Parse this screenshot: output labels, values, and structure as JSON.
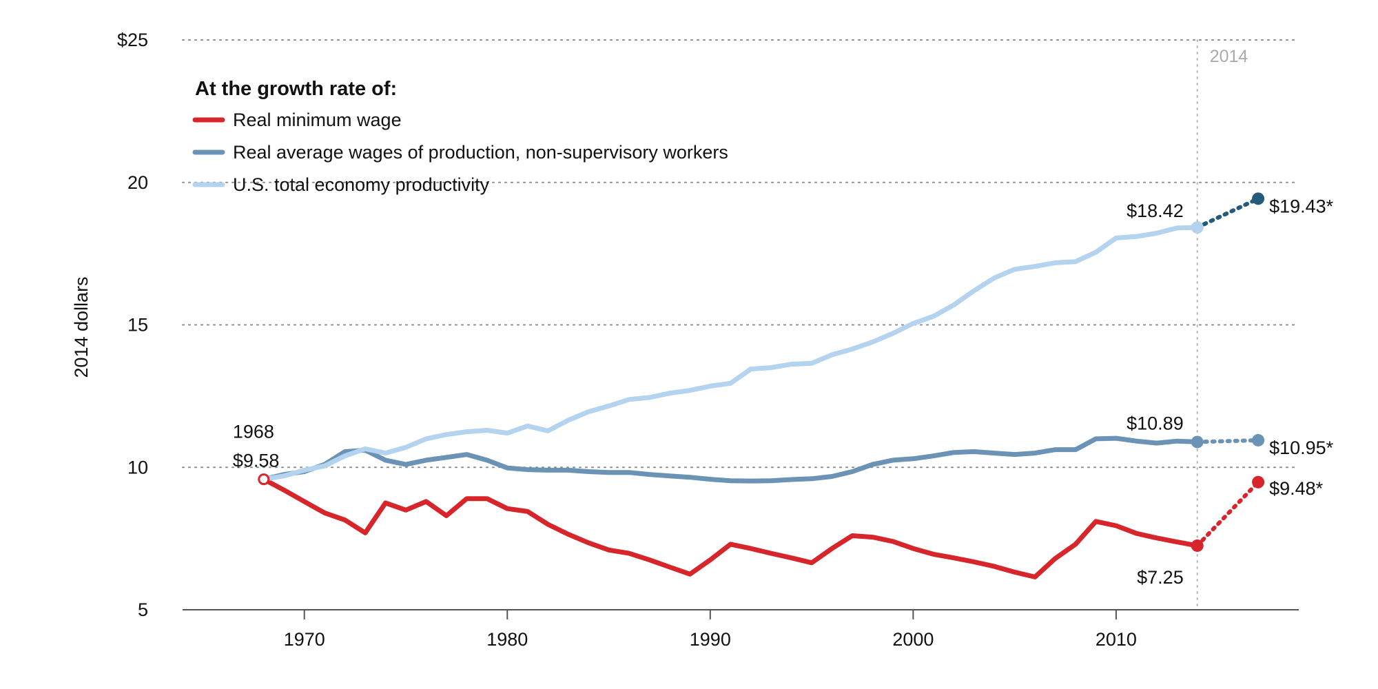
{
  "chart_data": {
    "type": "line",
    "ylabel": "2014 dollars",
    "ylim": [
      5,
      25
    ],
    "xlim": [
      1964,
      2019
    ],
    "y_ticks": [
      {
        "value": 25,
        "label": "$25"
      },
      {
        "value": 20,
        "label": "20"
      },
      {
        "value": 15,
        "label": "15"
      },
      {
        "value": 10,
        "label": "10"
      },
      {
        "value": 5,
        "label": "5"
      }
    ],
    "x_ticks": [
      {
        "value": 1970,
        "label": "1970"
      },
      {
        "value": 1980,
        "label": "1980"
      },
      {
        "value": 1990,
        "label": "1990"
      },
      {
        "value": 2000,
        "label": "2000"
      },
      {
        "value": 2010,
        "label": "2010"
      }
    ],
    "grid": "horizontal-dotted",
    "legend": {
      "title": "At the growth rate of:",
      "position": "top-left"
    },
    "reference_line": {
      "x": 2014,
      "label": "2014"
    },
    "series": [
      {
        "name": "Real minimum wage",
        "color": "#d7262b",
        "x": [
          1968,
          1969,
          1970,
          1971,
          1972,
          1973,
          1974,
          1975,
          1976,
          1977,
          1978,
          1979,
          1980,
          1981,
          1982,
          1983,
          1984,
          1985,
          1986,
          1987,
          1988,
          1989,
          1990,
          1991,
          1992,
          1993,
          1994,
          1995,
          1996,
          1997,
          1998,
          1999,
          2000,
          2001,
          2002,
          2003,
          2004,
          2005,
          2006,
          2007,
          2008,
          2009,
          2010,
          2011,
          2012,
          2013,
          2014
        ],
        "y": [
          9.58,
          9.2,
          8.8,
          8.4,
          8.15,
          7.7,
          8.75,
          8.5,
          8.8,
          8.3,
          8.9,
          8.9,
          8.55,
          8.45,
          8.0,
          7.65,
          7.35,
          7.1,
          6.98,
          6.75,
          6.5,
          6.25,
          6.75,
          7.3,
          7.15,
          6.98,
          6.82,
          6.65,
          7.15,
          7.6,
          7.55,
          7.4,
          7.15,
          6.95,
          6.82,
          6.68,
          6.52,
          6.32,
          6.15,
          6.8,
          7.3,
          8.1,
          7.95,
          7.68,
          7.52,
          7.38,
          7.25
        ],
        "projection": {
          "x": [
            2014,
            2017
          ],
          "y": [
            7.25,
            9.48
          ]
        }
      },
      {
        "name": "Real average wages of production, non-supervisory workers",
        "color": "#6a93b5",
        "x": [
          1968,
          1969,
          1970,
          1971,
          1972,
          1973,
          1974,
          1975,
          1976,
          1977,
          1978,
          1979,
          1980,
          1981,
          1982,
          1983,
          1984,
          1985,
          1986,
          1987,
          1988,
          1989,
          1990,
          1991,
          1992,
          1993,
          1994,
          1995,
          1996,
          1997,
          1998,
          1999,
          2000,
          2001,
          2002,
          2003,
          2004,
          2005,
          2006,
          2007,
          2008,
          2009,
          2010,
          2011,
          2012,
          2013,
          2014
        ],
        "y": [
          9.58,
          9.75,
          9.85,
          10.1,
          10.55,
          10.6,
          10.25,
          10.1,
          10.25,
          10.35,
          10.45,
          10.25,
          9.98,
          9.92,
          9.9,
          9.9,
          9.85,
          9.82,
          9.82,
          9.75,
          9.7,
          9.65,
          9.58,
          9.53,
          9.52,
          9.53,
          9.57,
          9.6,
          9.68,
          9.85,
          10.1,
          10.25,
          10.3,
          10.4,
          10.52,
          10.55,
          10.5,
          10.45,
          10.5,
          10.62,
          10.62,
          11.0,
          11.02,
          10.92,
          10.85,
          10.92,
          10.89
        ],
        "projection": {
          "x": [
            2014,
            2017
          ],
          "y": [
            10.89,
            10.95
          ]
        }
      },
      {
        "name": "U.S. total economy productivity",
        "color": "#b3d3ef",
        "x": [
          1968,
          1969,
          1970,
          1971,
          1972,
          1973,
          1974,
          1975,
          1976,
          1977,
          1978,
          1979,
          1980,
          1981,
          1982,
          1983,
          1984,
          1985,
          1986,
          1987,
          1988,
          1989,
          1990,
          1991,
          1992,
          1993,
          1994,
          1995,
          1996,
          1997,
          1998,
          1999,
          2000,
          2001,
          2002,
          2003,
          2004,
          2005,
          2006,
          2007,
          2008,
          2009,
          2010,
          2011,
          2012,
          2013,
          2014
        ],
        "y": [
          9.58,
          9.7,
          9.9,
          10.05,
          10.4,
          10.65,
          10.5,
          10.7,
          11.0,
          11.15,
          11.25,
          11.3,
          11.2,
          11.45,
          11.28,
          11.65,
          11.95,
          12.15,
          12.38,
          12.45,
          12.6,
          12.7,
          12.85,
          12.95,
          13.45,
          13.5,
          13.62,
          13.65,
          13.95,
          14.15,
          14.4,
          14.7,
          15.05,
          15.3,
          15.7,
          16.2,
          16.65,
          16.95,
          17.05,
          17.18,
          17.22,
          17.55,
          18.05,
          18.1,
          18.22,
          18.4,
          18.42
        ],
        "projection": {
          "x": [
            2014,
            2017
          ],
          "y": [
            18.42,
            19.43
          ],
          "color": "#245a7a"
        }
      }
    ],
    "annotations": [
      {
        "text": "1968",
        "x": 1968,
        "y": 9.58,
        "role": "start-year"
      },
      {
        "text": "$9.58",
        "x": 1968,
        "y": 9.58,
        "role": "start-value"
      },
      {
        "text": "$18.42",
        "x": 2014,
        "y": 18.42
      },
      {
        "text": "$10.89",
        "x": 2014,
        "y": 10.89
      },
      {
        "text": "$7.25",
        "x": 2014,
        "y": 7.25
      },
      {
        "text": "$19.43*",
        "x": 2017,
        "y": 19.43
      },
      {
        "text": "$10.95*",
        "x": 2017,
        "y": 10.95
      },
      {
        "text": "$9.48*",
        "x": 2017,
        "y": 9.48
      }
    ]
  }
}
